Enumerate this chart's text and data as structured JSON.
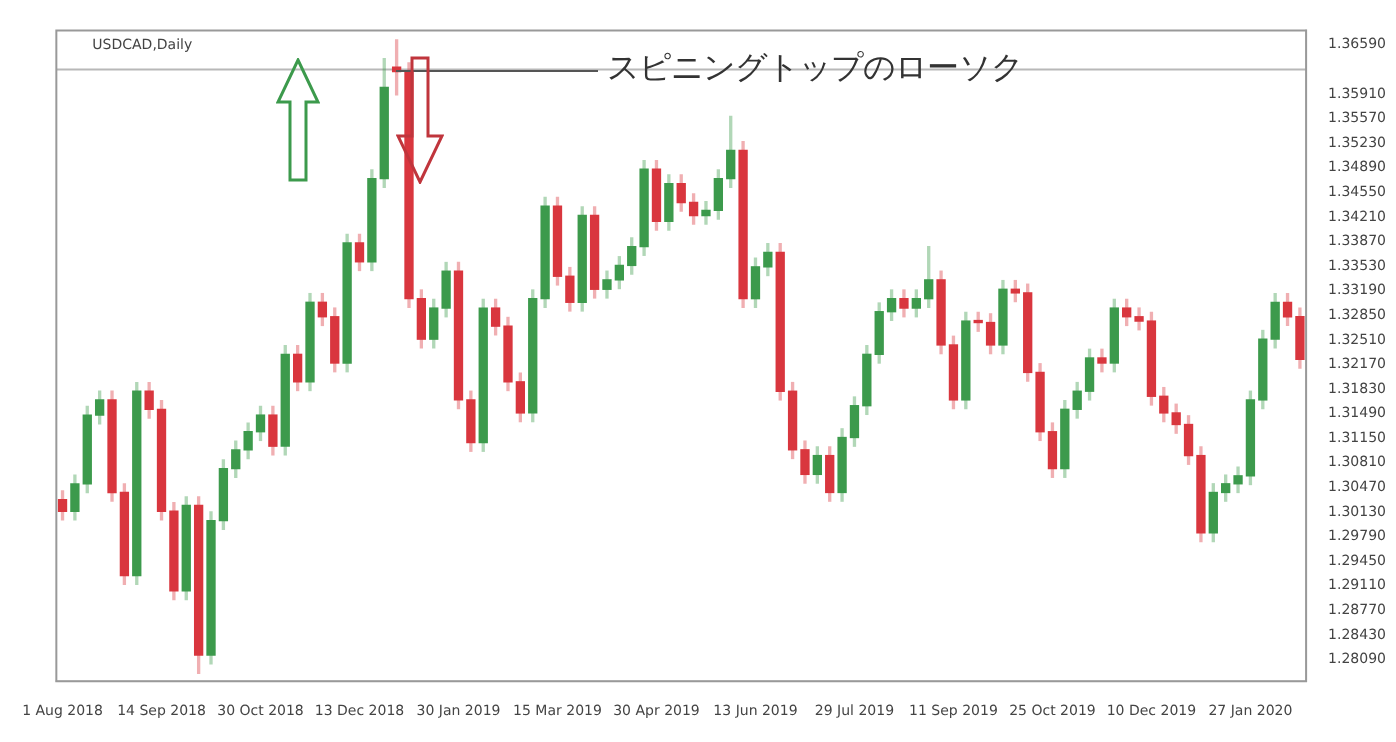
{
  "chart_data": {
    "type": "candlestick",
    "title": "USDCAD,Daily",
    "annotations": [
      {
        "text": "スピニングトップのローソク",
        "y": 1.3625
      }
    ],
    "categories": [
      "1 Aug 2018",
      null,
      null,
      null,
      null,
      null,
      null,
      null,
      "14 Sep 2018",
      null,
      null,
      null,
      null,
      null,
      null,
      null,
      "30 Oct 2018",
      null,
      null,
      null,
      null,
      null,
      null,
      null,
      "13 Dec 2018",
      null,
      null,
      null,
      null,
      null,
      null,
      null,
      "30 Jan 2019",
      null,
      null,
      null,
      null,
      null,
      null,
      null,
      "15 Mar 2019",
      null,
      null,
      null,
      null,
      null,
      null,
      null,
      "30 Apr 2019",
      null,
      null,
      null,
      null,
      null,
      null,
      null,
      "13 Jun 2019",
      null,
      null,
      null,
      null,
      null,
      null,
      null,
      "29 Jul 2019",
      null,
      null,
      null,
      null,
      null,
      null,
      null,
      "11 Sep 2019",
      null,
      null,
      null,
      null,
      null,
      null,
      null,
      "25 Oct 2019",
      null,
      null,
      null,
      null,
      null,
      null,
      null,
      "10 Dec 2019",
      null,
      null,
      null,
      null,
      null,
      null,
      null,
      "27 Jan 2020",
      null,
      null,
      null,
      null
    ],
    "ohlc": [
      [
        1.303,
        1.3042,
        1.3002,
        1.3014
      ],
      [
        1.3014,
        1.3064,
        1.3002,
        1.3052
      ],
      [
        1.3052,
        1.3159,
        1.304,
        1.3147
      ],
      [
        1.3147,
        1.318,
        1.3135,
        1.3168
      ],
      [
        1.3168,
        1.318,
        1.3028,
        1.304
      ],
      [
        1.304,
        1.3052,
        1.2913,
        1.2925
      ],
      [
        1.2925,
        1.3192,
        1.2913,
        1.318
      ],
      [
        1.318,
        1.3192,
        1.3143,
        1.3155
      ],
      [
        1.3155,
        1.3167,
        1.3002,
        1.3014
      ],
      [
        1.3014,
        1.3026,
        1.2892,
        1.2904
      ],
      [
        1.2904,
        1.3034,
        1.2892,
        1.3022
      ],
      [
        1.3022,
        1.3034,
        1.279,
        1.2815
      ],
      [
        1.2815,
        1.3013,
        1.2803,
        1.3001
      ],
      [
        1.3001,
        1.3085,
        1.2989,
        1.3073
      ],
      [
        1.3073,
        1.3111,
        1.3061,
        1.3099
      ],
      [
        1.3099,
        1.3136,
        1.3087,
        1.3124
      ],
      [
        1.3124,
        1.3159,
        1.3112,
        1.3147
      ],
      [
        1.3147,
        1.3159,
        1.3092,
        1.3104
      ],
      [
        1.3104,
        1.3243,
        1.3092,
        1.3231
      ],
      [
        1.3231,
        1.3243,
        1.3181,
        1.3193
      ],
      [
        1.3193,
        1.3315,
        1.3181,
        1.3303
      ],
      [
        1.3303,
        1.3315,
        1.3271,
        1.3283
      ],
      [
        1.3283,
        1.3295,
        1.3207,
        1.3219
      ],
      [
        1.3219,
        1.3397,
        1.3207,
        1.3385
      ],
      [
        1.3385,
        1.3397,
        1.3347,
        1.3359
      ],
      [
        1.3359,
        1.3486,
        1.3347,
        1.3474
      ],
      [
        1.3474,
        1.364,
        1.3462,
        1.36
      ],
      [
        1.3628,
        1.3666,
        1.359,
        1.3622
      ],
      [
        1.3622,
        1.3634,
        1.3296,
        1.3308
      ],
      [
        1.3308,
        1.332,
        1.324,
        1.3252
      ],
      [
        1.3252,
        1.3307,
        1.324,
        1.3295
      ],
      [
        1.3295,
        1.3358,
        1.3283,
        1.3346
      ],
      [
        1.3346,
        1.3358,
        1.3156,
        1.3168
      ],
      [
        1.3168,
        1.318,
        1.3097,
        1.3109
      ],
      [
        1.3109,
        1.3307,
        1.3097,
        1.3295
      ],
      [
        1.3295,
        1.3307,
        1.3258,
        1.327
      ],
      [
        1.327,
        1.3282,
        1.3181,
        1.3193
      ],
      [
        1.3193,
        1.3205,
        1.3138,
        1.315
      ],
      [
        1.315,
        1.332,
        1.3138,
        1.3308
      ],
      [
        1.3308,
        1.3448,
        1.3296,
        1.3436
      ],
      [
        1.3436,
        1.3448,
        1.3327,
        1.3339
      ],
      [
        1.3339,
        1.3351,
        1.3291,
        1.3303
      ],
      [
        1.3303,
        1.3435,
        1.3291,
        1.3423
      ],
      [
        1.3423,
        1.3435,
        1.3309,
        1.3321
      ],
      [
        1.3321,
        1.3346,
        1.3309,
        1.3334
      ],
      [
        1.3334,
        1.3366,
        1.3322,
        1.3354
      ],
      [
        1.3354,
        1.3392,
        1.3342,
        1.338
      ],
      [
        1.338,
        1.3499,
        1.3368,
        1.3487
      ],
      [
        1.3487,
        1.3499,
        1.3403,
        1.3415
      ],
      [
        1.3415,
        1.3479,
        1.3403,
        1.3467
      ],
      [
        1.3467,
        1.3479,
        1.3429,
        1.3441
      ],
      [
        1.3441,
        1.3453,
        1.3411,
        1.3423
      ],
      [
        1.3423,
        1.3442,
        1.3411,
        1.343
      ],
      [
        1.343,
        1.3486,
        1.3418,
        1.3474
      ],
      [
        1.3474,
        1.356,
        1.3462,
        1.3513
      ],
      [
        1.3513,
        1.3525,
        1.3296,
        1.3308
      ],
      [
        1.3308,
        1.3364,
        1.3296,
        1.3352
      ],
      [
        1.3352,
        1.3384,
        1.334,
        1.3372
      ],
      [
        1.3372,
        1.3384,
        1.3168,
        1.318
      ],
      [
        1.318,
        1.3192,
        1.3087,
        1.3099
      ],
      [
        1.3099,
        1.3111,
        1.3053,
        1.3065
      ],
      [
        1.3065,
        1.3103,
        1.3053,
        1.3091
      ],
      [
        1.3091,
        1.3103,
        1.3028,
        1.304
      ],
      [
        1.304,
        1.3128,
        1.3028,
        1.3116
      ],
      [
        1.3116,
        1.3172,
        1.3104,
        1.316
      ],
      [
        1.316,
        1.3243,
        1.3148,
        1.3231
      ],
      [
        1.3231,
        1.3302,
        1.3219,
        1.329
      ],
      [
        1.329,
        1.332,
        1.3278,
        1.3308
      ],
      [
        1.3308,
        1.332,
        1.3283,
        1.3295
      ],
      [
        1.3295,
        1.332,
        1.3283,
        1.3308
      ],
      [
        1.3308,
        1.338,
        1.3296,
        1.3334
      ],
      [
        1.3334,
        1.3346,
        1.3232,
        1.3244
      ],
      [
        1.3244,
        1.3256,
        1.3156,
        1.3168
      ],
      [
        1.3168,
        1.3289,
        1.3156,
        1.3277
      ],
      [
        1.3277,
        1.3289,
        1.3263,
        1.3275
      ],
      [
        1.3275,
        1.3287,
        1.3232,
        1.3244
      ],
      [
        1.3244,
        1.3333,
        1.3232,
        1.3321
      ],
      [
        1.3321,
        1.3333,
        1.3304,
        1.3316
      ],
      [
        1.3316,
        1.3328,
        1.3194,
        1.3206
      ],
      [
        1.3206,
        1.3218,
        1.3112,
        1.3124
      ],
      [
        1.3124,
        1.3136,
        1.3061,
        1.3073
      ],
      [
        1.3073,
        1.3167,
        1.3061,
        1.3155
      ],
      [
        1.3155,
        1.3192,
        1.3143,
        1.318
      ],
      [
        1.318,
        1.3238,
        1.3168,
        1.3226
      ],
      [
        1.3226,
        1.3238,
        1.3207,
        1.3219
      ],
      [
        1.3219,
        1.3307,
        1.3207,
        1.3295
      ],
      [
        1.3295,
        1.3307,
        1.3271,
        1.3283
      ],
      [
        1.3283,
        1.3295,
        1.3265,
        1.3277
      ],
      [
        1.3277,
        1.3289,
        1.3161,
        1.3173
      ],
      [
        1.3173,
        1.3185,
        1.3138,
        1.315
      ],
      [
        1.315,
        1.3162,
        1.3122,
        1.3134
      ],
      [
        1.3134,
        1.3146,
        1.3079,
        1.3091
      ],
      [
        1.3091,
        1.3103,
        1.2972,
        1.2984
      ],
      [
        1.2984,
        1.3052,
        1.2972,
        1.304
      ],
      [
        1.304,
        1.3064,
        1.3028,
        1.3052
      ],
      [
        1.3052,
        1.3075,
        1.304,
        1.3063
      ],
      [
        1.3063,
        1.318,
        1.3051,
        1.3168
      ],
      [
        1.3168,
        1.3264,
        1.3156,
        1.3252
      ],
      [
        1.3252,
        1.3315,
        1.324,
        1.3303
      ],
      [
        1.3303,
        1.3315,
        1.3271,
        1.3283
      ],
      [
        1.3283,
        1.3295,
        1.3212,
        1.3224
      ]
    ],
    "colors": [
      "#d9363e",
      "#3c9a4c",
      "#3c9a4c",
      "#3c9a4c",
      "#d9363e",
      "#d9363e",
      "#3c9a4c",
      "#d9363e",
      "#d9363e",
      "#d9363e",
      "#3c9a4c",
      "#d9363e",
      "#3c9a4c",
      "#3c9a4c",
      "#3c9a4c",
      "#3c9a4c",
      "#3c9a4c",
      "#d9363e",
      "#3c9a4c",
      "#d9363e",
      "#3c9a4c",
      "#d9363e",
      "#d9363e",
      "#3c9a4c",
      "#d9363e",
      "#3c9a4c",
      "#3c9a4c",
      "#d9363e",
      "#d9363e",
      "#d9363e",
      "#3c9a4c",
      "#3c9a4c",
      "#d9363e",
      "#d9363e",
      "#3c9a4c",
      "#d9363e",
      "#d9363e",
      "#d9363e",
      "#3c9a4c",
      "#3c9a4c",
      "#d9363e",
      "#d9363e",
      "#3c9a4c",
      "#d9363e",
      "#3c9a4c",
      "#3c9a4c",
      "#3c9a4c",
      "#3c9a4c",
      "#d9363e",
      "#3c9a4c",
      "#d9363e",
      "#d9363e",
      "#3c9a4c",
      "#3c9a4c",
      "#3c9a4c",
      "#d9363e",
      "#3c9a4c",
      "#3c9a4c",
      "#d9363e",
      "#d9363e",
      "#d9363e",
      "#3c9a4c",
      "#d9363e",
      "#3c9a4c",
      "#3c9a4c",
      "#3c9a4c",
      "#3c9a4c",
      "#3c9a4c",
      "#d9363e",
      "#3c9a4c",
      "#3c9a4c",
      "#d9363e",
      "#d9363e",
      "#3c9a4c",
      "#d9363e",
      "#d9363e",
      "#3c9a4c",
      "#d9363e",
      "#d9363e",
      "#d9363e",
      "#d9363e",
      "#3c9a4c",
      "#3c9a4c",
      "#3c9a4c",
      "#d9363e",
      "#3c9a4c",
      "#d9363e",
      "#d9363e",
      "#d9363e",
      "#d9363e",
      "#d9363e",
      "#d9363e",
      "#d9363e",
      "#3c9a4c",
      "#3c9a4c",
      "#3c9a4c",
      "#3c9a4c",
      "#3c9a4c",
      "#3c9a4c",
      "#d9363e",
      "#d9363e"
    ],
    "ylim": [
      1.2779,
      1.3679
    ],
    "yticks": [
      {
        "value": 1.3659,
        "label": "1.36590"
      },
      {
        "value": 1.3591,
        "label": "1.35910"
      },
      {
        "value": 1.3557,
        "label": "1.35570"
      },
      {
        "value": 1.3523,
        "label": "1.35230"
      },
      {
        "value": 1.3489,
        "label": "1.34890"
      },
      {
        "value": 1.3455,
        "label": "1.34550"
      },
      {
        "value": 1.3421,
        "label": "1.34210"
      },
      {
        "value": 1.3387,
        "label": "1.33870"
      },
      {
        "value": 1.3353,
        "label": "1.33530"
      },
      {
        "value": 1.3319,
        "label": "1.33190"
      },
      {
        "value": 1.3285,
        "label": "1.32850"
      },
      {
        "value": 1.3251,
        "label": "1.32510"
      },
      {
        "value": 1.3217,
        "label": "1.32170"
      },
      {
        "value": 1.3183,
        "label": "1.31830"
      },
      {
        "value": 1.3149,
        "label": "1.31490"
      },
      {
        "value": 1.3115,
        "label": "1.31150"
      },
      {
        "value": 1.3081,
        "label": "1.30810"
      },
      {
        "value": 1.3047,
        "label": "1.30470"
      },
      {
        "value": 1.3013,
        "label": "1.30130"
      },
      {
        "value": 1.2979,
        "label": "1.29790"
      },
      {
        "value": 1.2945,
        "label": "1.29450"
      },
      {
        "value": 1.2911,
        "label": "1.29110"
      },
      {
        "value": 1.2877,
        "label": "1.28770"
      },
      {
        "value": 1.2843,
        "label": "1.28430"
      },
      {
        "value": 1.2809,
        "label": "1.28090"
      }
    ],
    "ref_lines": [
      {
        "axis": "y",
        "value": 1.3625,
        "color": "#b8b8b8"
      }
    ],
    "grid": false,
    "legend": false
  }
}
